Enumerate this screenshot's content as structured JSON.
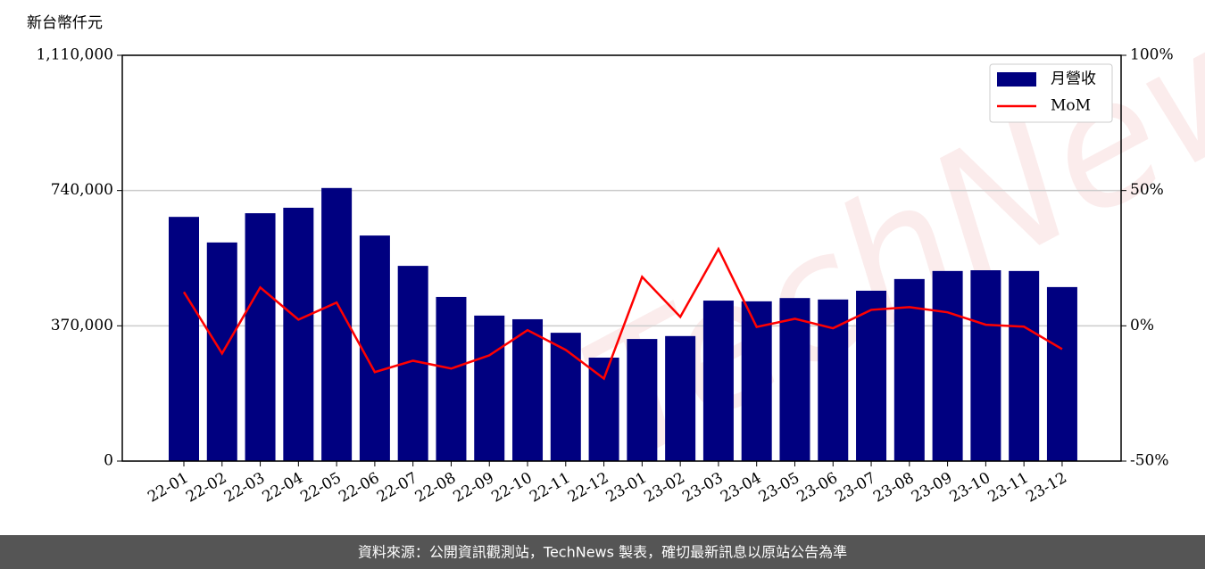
{
  "chart_data": {
    "type": "bar",
    "ylabel": "新台幣仟元",
    "watermark": "TechNews",
    "source": "資料來源：公開資訊觀測站，TechNews 製表，確切最新訊息以原站公告為準",
    "categories": [
      "22-01",
      "22-02",
      "22-03",
      "22-04",
      "22-05",
      "22-06",
      "22-07",
      "22-08",
      "22-09",
      "22-10",
      "22-11",
      "22-12",
      "23-01",
      "23-02",
      "23-03",
      "23-04",
      "23-05",
      "23-06",
      "23-07",
      "23-08",
      "23-09",
      "23-10",
      "23-11",
      "23-12"
    ],
    "series": [
      {
        "name": "月營收",
        "type": "bar",
        "color": "#000080",
        "values": [
          668000,
          598000,
          678000,
          693000,
          747000,
          617000,
          534000,
          449000,
          398000,
          388000,
          351000,
          283000,
          334000,
          342000,
          439000,
          437000,
          446000,
          442000,
          466000,
          498000,
          520000,
          522000,
          520000,
          476000
        ]
      },
      {
        "name": "MoM",
        "type": "line",
        "axis": "y2",
        "color": "#ff0000",
        "values": [
          12.5,
          -10.2,
          14.2,
          2.3,
          8.6,
          -17.1,
          -12.9,
          -15.8,
          -10.9,
          -1.6,
          -8.9,
          -19.5,
          18.1,
          3.3,
          28.4,
          -0.4,
          2.6,
          -0.9,
          5.9,
          6.9,
          5.0,
          0.4,
          -0.3,
          -8.6
        ]
      }
    ],
    "ylim": [
      0,
      1110000
    ],
    "yticks": [
      0,
      {
        "value": 370000,
        "label": "370,000"
      },
      {
        "value": 740000,
        "label": "740,000"
      },
      {
        "value": 1110000,
        "label": "1,110,000"
      }
    ],
    "y2lim": [
      -50,
      100
    ],
    "y2ticks": [
      {
        "value": -50,
        "label": "-50%"
      },
      {
        "value": 0,
        "label": "0%"
      },
      {
        "value": 50,
        "label": "50%"
      },
      {
        "value": 100,
        "label": "100%"
      }
    ],
    "grid": true,
    "legend": "upper right"
  }
}
